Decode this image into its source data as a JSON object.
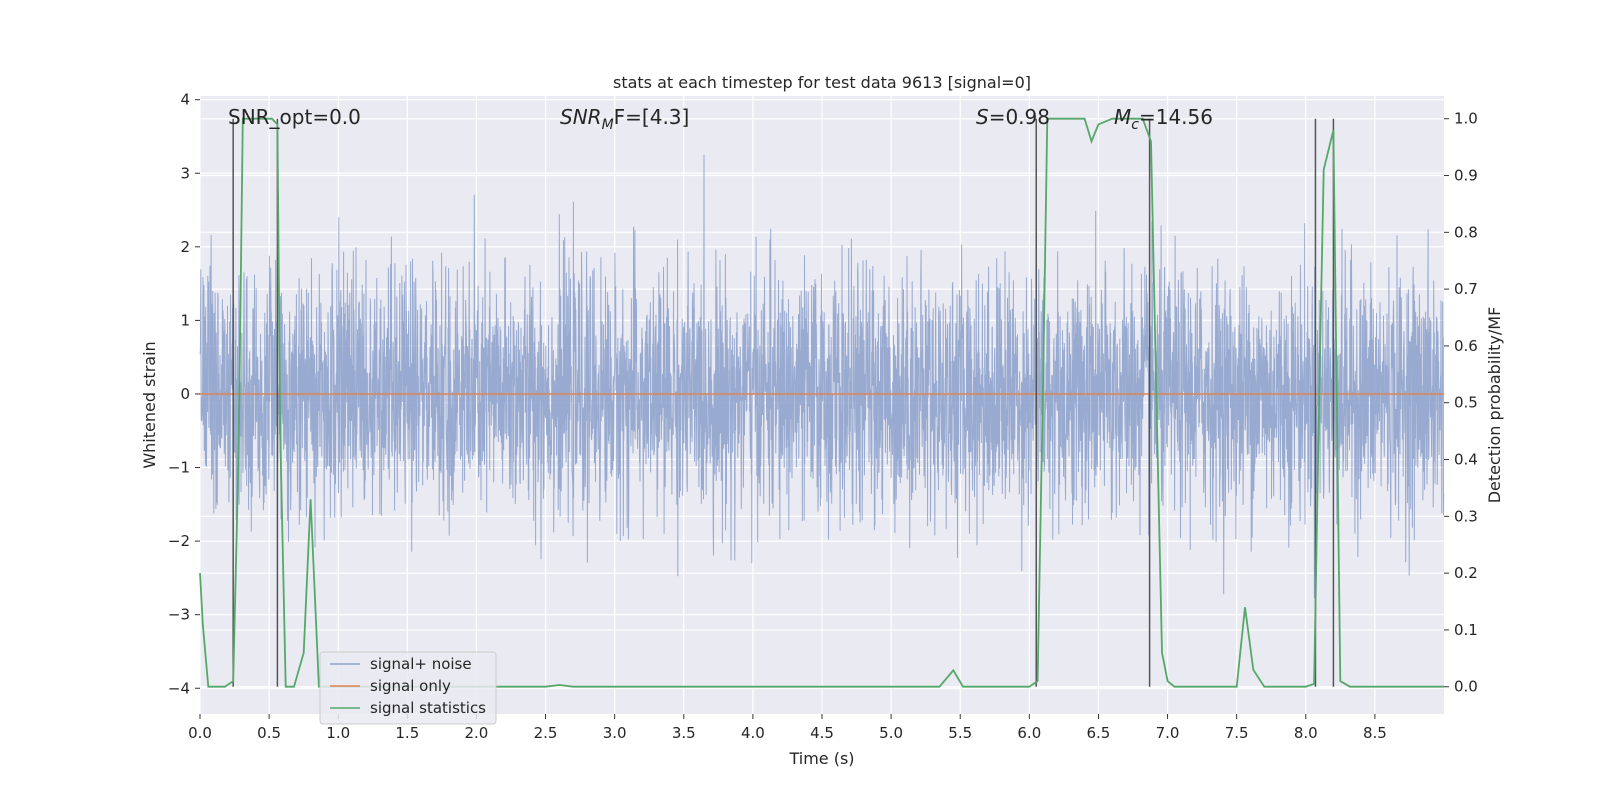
{
  "chart_data": {
    "type": "line",
    "title": "stats at each timestep for test data 9613 [signal=0]",
    "xlabel": "Time (s)",
    "ylabel": "Whitened strain",
    "y2label": "Detection probability/MF",
    "xlim": [
      0.0,
      9.0
    ],
    "ylim": [
      -4.35,
      4.05
    ],
    "y2lim": [
      -0.048,
      1.04
    ],
    "xticks": [
      "0.0",
      "0.5",
      "1.0",
      "1.5",
      "2.0",
      "2.5",
      "3.0",
      "3.5",
      "4.0",
      "4.5",
      "5.0",
      "5.5",
      "6.0",
      "6.5",
      "7.0",
      "7.5",
      "8.0",
      "8.5"
    ],
    "yticks": [
      "4",
      "3",
      "2",
      "1",
      "0",
      "−1",
      "−2",
      "−3",
      "−4"
    ],
    "y2ticks": [
      "1.0",
      "0.9",
      "0.8",
      "0.7",
      "0.6",
      "0.5",
      "0.4",
      "0.3",
      "0.2",
      "0.1",
      "0.0"
    ],
    "annotations": {
      "snr_opt": "SNR_opt=0.0",
      "snr_mf_sym": "SNR",
      "snr_mf_sub": "M",
      "snr_mf_rest": "F=[4.3]",
      "s_sym": "S",
      "s_rest": "=0.98",
      "mc_sym": "M",
      "mc_sub": "c",
      "mc_rest": "=14.56"
    },
    "legend": {
      "placement": "lower-left",
      "entries": [
        "signal+ noise",
        "signal only",
        "signal statistics"
      ]
    },
    "colors": {
      "noise": "#8fa3cc",
      "signal": "#dd8452",
      "stats": "#55a868",
      "vlines": "#555555",
      "background": "#eaeaf2",
      "grid": "#ffffff"
    },
    "series": [
      {
        "name": "signal+ noise",
        "sample_rate": 2048,
        "duration": 9.0,
        "std": 0.82,
        "peak_range": [
          -3.4,
          3.25
        ]
      },
      {
        "name": "signal only",
        "constant": 0.0
      },
      {
        "name": "signal statistics",
        "x": [
          0.0,
          0.02,
          0.06,
          0.1,
          0.18,
          0.24,
          0.28,
          0.31,
          0.34,
          0.45,
          0.52,
          0.56,
          0.58,
          0.62,
          0.68,
          0.75,
          0.8,
          0.86,
          0.92,
          1.0,
          1.5,
          2.0,
          2.5,
          2.6,
          2.7,
          3.0,
          4.0,
          5.0,
          5.35,
          5.45,
          5.52,
          5.6,
          5.8,
          6.0,
          6.06,
          6.1,
          6.13,
          6.2,
          6.3,
          6.4,
          6.45,
          6.5,
          6.6,
          6.75,
          6.82,
          6.88,
          6.92,
          6.96,
          7.0,
          7.05,
          7.2,
          7.35,
          7.5,
          7.56,
          7.62,
          7.7,
          7.8,
          8.0,
          8.06,
          8.1,
          8.13,
          8.2,
          8.25,
          8.32,
          8.5,
          9.0
        ],
        "y": [
          0.2,
          0.11,
          0.0,
          0.0,
          0.0,
          0.01,
          0.42,
          1.0,
          1.0,
          1.0,
          1.0,
          0.99,
          0.45,
          0.0,
          0.0,
          0.06,
          0.33,
          0.0,
          0.0,
          0.0,
          0.0,
          0.0,
          0.0,
          0.003,
          0.0,
          0.0,
          0.0,
          0.0,
          0.0,
          0.029,
          0.0,
          0.0,
          0.0,
          0.0,
          0.01,
          0.55,
          1.0,
          1.0,
          1.0,
          1.0,
          0.96,
          0.99,
          1.0,
          1.0,
          1.0,
          0.96,
          0.5,
          0.06,
          0.01,
          0.0,
          0.0,
          0.0,
          0.0,
          0.14,
          0.03,
          0.0,
          0.0,
          0.0,
          0.005,
          0.55,
          0.91,
          0.98,
          0.01,
          0.0,
          0.0,
          0.0
        ]
      }
    ],
    "vlines": [
      0.24,
      0.56,
      6.05,
      6.87,
      8.07,
      8.2
    ]
  }
}
